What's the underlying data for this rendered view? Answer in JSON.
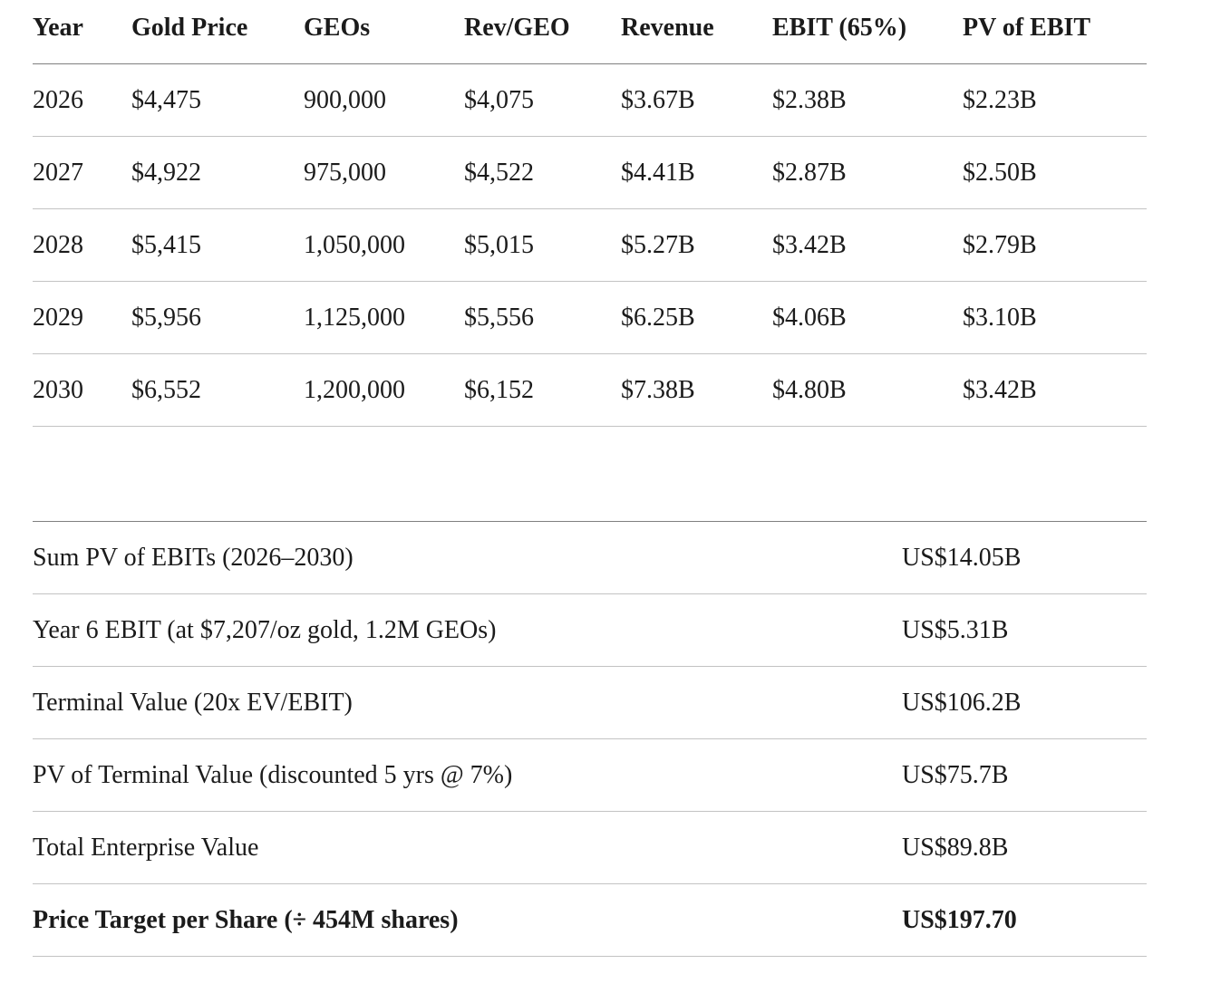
{
  "projection_table": {
    "columns": [
      "Year",
      "Gold Price",
      "GEOs",
      "Rev/GEO",
      "Revenue",
      "EBIT (65%)",
      "PV of EBIT"
    ],
    "rows": [
      [
        "2026",
        "$4,475",
        "900,000",
        "$4,075",
        "$3.67B",
        "$2.38B",
        "$2.23B"
      ],
      [
        "2027",
        "$4,922",
        "975,000",
        "$4,522",
        "$4.41B",
        "$2.87B",
        "$2.50B"
      ],
      [
        "2028",
        "$5,415",
        "1,050,000",
        "$5,015",
        "$5.27B",
        "$3.42B",
        "$2.79B"
      ],
      [
        "2029",
        "$5,956",
        "1,125,000",
        "$5,556",
        "$6.25B",
        "$4.06B",
        "$3.10B"
      ],
      [
        "2030",
        "$6,552",
        "1,200,000",
        "$6,152",
        "$7.38B",
        "$4.80B",
        "$3.42B"
      ]
    ]
  },
  "valuation_summary": {
    "rows": [
      {
        "label": "Sum PV of EBITs (2026–2030)",
        "value": "US$14.05B"
      },
      {
        "label": "Year 6 EBIT (at $7,207/oz gold, 1.2M GEOs)",
        "value": "US$5.31B"
      },
      {
        "label": "Terminal Value (20x EV/EBIT)",
        "value": "US$106.2B"
      },
      {
        "label": "PV of Terminal Value (discounted 5 yrs @ 7%)",
        "value": "US$75.7B"
      },
      {
        "label": "Total Enterprise Value",
        "value": "US$89.8B"
      },
      {
        "label": "Price Target per Share (÷ 454M shares)",
        "value": "US$197.70"
      }
    ]
  },
  "chart_data": {
    "type": "table",
    "title": "",
    "columns": [
      "Year",
      "Gold Price",
      "GEOs",
      "Rev/GEO",
      "Revenue",
      "EBIT (65%)",
      "PV of EBIT"
    ],
    "rows": [
      [
        2026,
        4475,
        900000,
        4075,
        "3.67B",
        "2.38B",
        "2.23B"
      ],
      [
        2027,
        4922,
        975000,
        4522,
        "4.41B",
        "2.87B",
        "2.50B"
      ],
      [
        2028,
        5415,
        1050000,
        5015,
        "5.27B",
        "3.42B",
        "2.79B"
      ],
      [
        2029,
        5956,
        1125000,
        5556,
        "6.25B",
        "4.06B",
        "3.10B"
      ],
      [
        2030,
        6552,
        1200000,
        6152,
        "7.38B",
        "4.80B",
        "3.42B"
      ]
    ],
    "summary": {
      "sum_pv_ebits_2026_2030": "US$14.05B",
      "year6_ebit": "US$5.31B",
      "terminal_value_20x": "US$106.2B",
      "pv_terminal_value_5yr_7pct": "US$75.7B",
      "total_enterprise_value": "US$89.8B",
      "price_target_per_share_454m": "US$197.70"
    }
  },
  "colors": {
    "text": "#1b1b1b",
    "rule_dark": "#7f7f7f",
    "rule_light": "#c3c3c3",
    "background": "#ffffff"
  }
}
